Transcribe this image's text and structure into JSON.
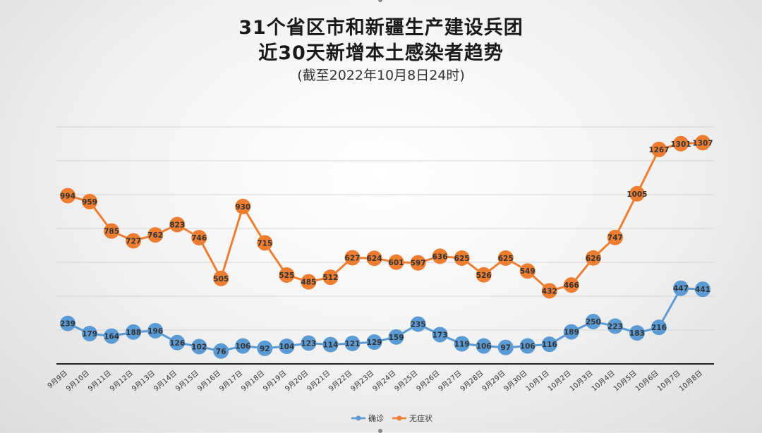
{
  "chart_data": {
    "type": "line",
    "title_line1": "31个省区市和新疆生产建设兵团",
    "title_line2": "近30天新增本土感染者趋势",
    "subtitle": "(截至2022年10月8日24时)",
    "categories": [
      "9月9日",
      "9月10日",
      "9月11日",
      "9月12日",
      "9月13日",
      "9月14日",
      "9月15日",
      "9月16日",
      "9月17日",
      "9月18日",
      "9月19日",
      "9月20日",
      "9月21日",
      "9月22日",
      "9月23日",
      "9月24日",
      "9月25日",
      "9月26日",
      "9月27日",
      "9月28日",
      "9月29日",
      "9月30日",
      "10月1日",
      "10月2日",
      "10月3日",
      "10月4日",
      "10月5日",
      "10月6日",
      "10月7日",
      "10月8日"
    ],
    "series": [
      {
        "name": "确诊",
        "color": "#5b9bd5",
        "values": [
          239,
          179,
          164,
          188,
          196,
          126,
          102,
          76,
          106,
          92,
          104,
          123,
          114,
          121,
          129,
          159,
          235,
          173,
          119,
          106,
          97,
          106,
          116,
          189,
          250,
          223,
          183,
          216,
          447,
          441
        ]
      },
      {
        "name": "无症状",
        "color": "#ed7d31",
        "values": [
          994,
          959,
          785,
          727,
          762,
          823,
          746,
          505,
          930,
          715,
          525,
          485,
          512,
          627,
          624,
          601,
          597,
          636,
          625,
          526,
          625,
          549,
          432,
          466,
          626,
          747,
          1005,
          1267,
          1301,
          1307
        ]
      }
    ],
    "ylim": [
      0,
      1400
    ],
    "grid": true,
    "legend": "bottom-center"
  }
}
